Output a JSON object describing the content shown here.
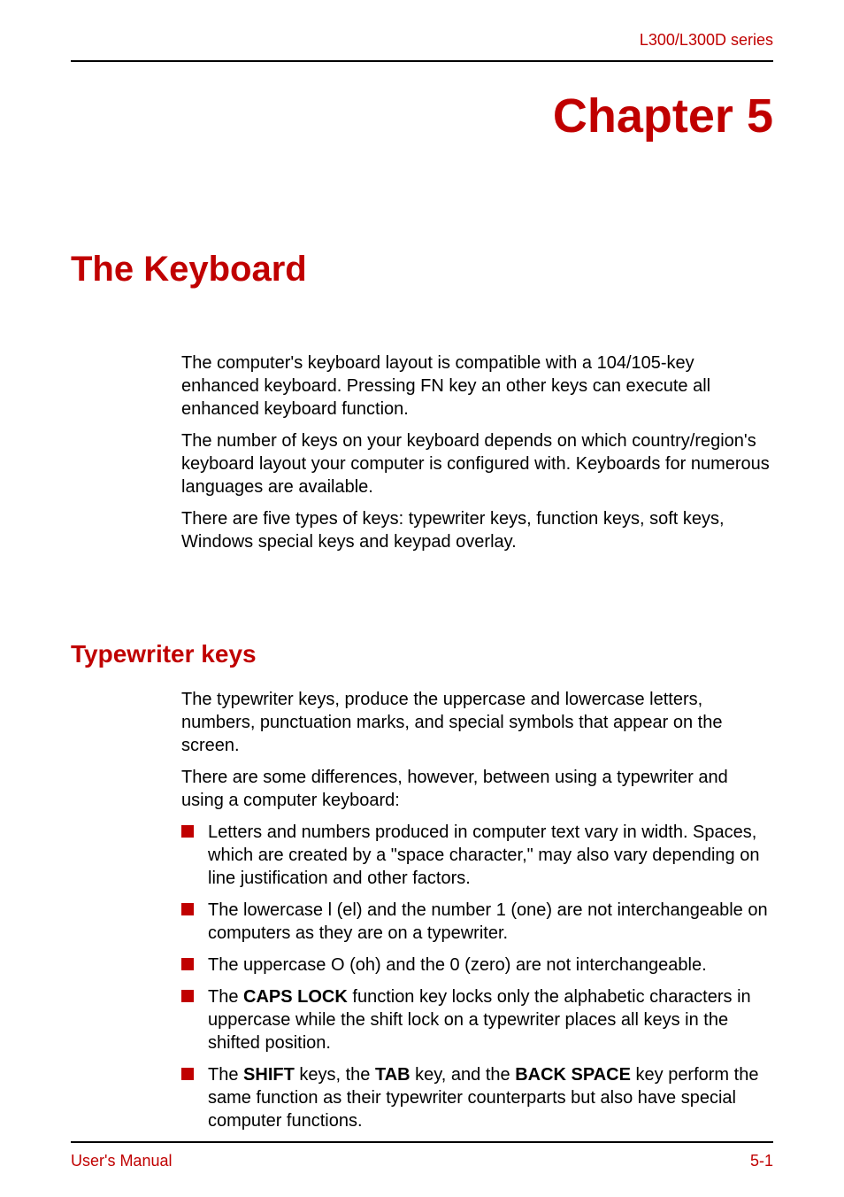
{
  "header": {
    "series": "L300/L300D series"
  },
  "chapter": {
    "title": "Chapter 5"
  },
  "section": {
    "title": "The Keyboard"
  },
  "intro": {
    "p1": "The computer's keyboard layout is compatible with a 104/105-key enhanced keyboard. Pressing FN key an other keys can execute all enhanced keyboard function.",
    "p2": "The number of keys on your keyboard depends on which country/region's keyboard layout your computer is configured with. Keyboards for numerous languages are available.",
    "p3": "There are five types of keys: typewriter keys, function keys, soft keys, Windows special keys and keypad overlay."
  },
  "subsection": {
    "title": "Typewriter keys",
    "p1": "The typewriter keys, produce the uppercase and lowercase letters, numbers, punctuation marks, and special symbols that appear on the screen.",
    "p2": "There are some differences, however, between using a typewriter and using a computer keyboard:",
    "bullets": {
      "b1": "Letters and numbers produced in computer text vary in width. Spaces, which are created by a \"space character,\" may also vary depending on line justification and other factors.",
      "b2": "The lowercase l (el) and the number 1 (one) are not interchangeable on computers as they are on a typewriter.",
      "b3": "The uppercase O (oh) and the 0 (zero) are not interchangeable.",
      "b4_pre": "The ",
      "b4_bold": "CAPS LOCK",
      "b4_post": " function key locks only the alphabetic characters in uppercase while the shift lock on a typewriter places all keys in the shifted position.",
      "b5_pre": "The ",
      "b5_b1": "SHIFT",
      "b5_m1": " keys, the ",
      "b5_b2": "TAB",
      "b5_m2": " key, and the ",
      "b5_b3": "BACK SPACE",
      "b5_post": " key perform the same function as their typewriter counterparts but also have special computer functions."
    }
  },
  "footer": {
    "left": "User's Manual",
    "right": "5-1"
  },
  "colors": {
    "accent": "#c00000",
    "text": "#000000",
    "background": "#ffffff",
    "rule": "#000000"
  },
  "typography": {
    "header_fontsize": 18,
    "chapter_fontsize": 54,
    "section_fontsize": 40,
    "subsection_fontsize": 28,
    "body_fontsize": 20,
    "footer_fontsize": 18
  }
}
